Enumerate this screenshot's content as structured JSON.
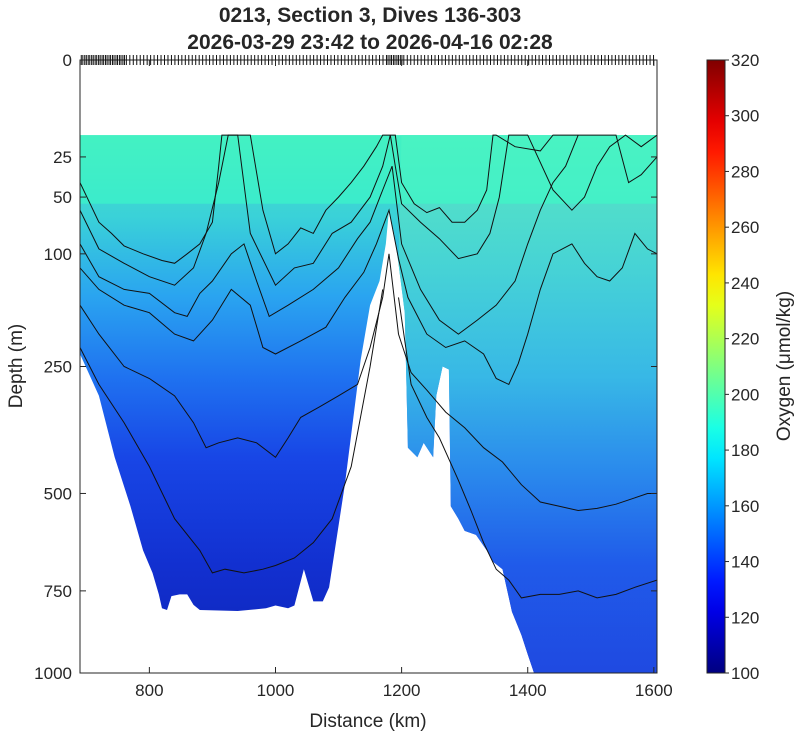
{
  "chart_data": {
    "type": "heatmap",
    "title": [
      "0213, Section 3, Dives 136-303",
      "2026-03-29 23:42 to 2026-04-16 02:28"
    ],
    "xlabel": "Distance (km)",
    "ylabel": "Depth (m)",
    "xlim": [
      690,
      1605
    ],
    "ylim": [
      0,
      1000
    ],
    "y_scale": "sqrt",
    "xticks": [
      800,
      1000,
      1200,
      1400,
      1600
    ],
    "yticks": [
      0,
      25,
      50,
      100,
      250,
      500,
      750,
      1000
    ],
    "colorbar": {
      "label": "Oxygen (μmol/kg)",
      "range": [
        100,
        320
      ],
      "ticks": [
        100,
        120,
        140,
        160,
        180,
        200,
        220,
        240,
        260,
        280,
        300,
        320
      ],
      "colormap": "jet"
    },
    "data_top_depth": 15,
    "surface_value": 195,
    "bottom_boundary": [
      [
        690,
        230
      ],
      [
        720,
        300
      ],
      [
        745,
        420
      ],
      [
        770,
        530
      ],
      [
        790,
        640
      ],
      [
        805,
        700
      ],
      [
        815,
        760
      ],
      [
        820,
        800
      ],
      [
        828,
        805
      ],
      [
        835,
        765
      ],
      [
        848,
        760
      ],
      [
        860,
        760
      ],
      [
        870,
        790
      ],
      [
        880,
        805
      ],
      [
        940,
        808
      ],
      [
        985,
        800
      ],
      [
        1000,
        792
      ],
      [
        1020,
        800
      ],
      [
        1030,
        792
      ],
      [
        1045,
        690
      ],
      [
        1060,
        780
      ],
      [
        1075,
        780
      ],
      [
        1085,
        740
      ],
      [
        1110,
        480
      ],
      [
        1135,
        240
      ],
      [
        1150,
        160
      ],
      [
        1165,
        130
      ],
      [
        1175,
        90
      ],
      [
        1180,
        60
      ],
      [
        1188,
        80
      ],
      [
        1195,
        110
      ],
      [
        1205,
        170
      ],
      [
        1210,
        400
      ],
      [
        1225,
        420
      ],
      [
        1235,
        390
      ],
      [
        1245,
        410
      ],
      [
        1250,
        420
      ],
      [
        1255,
        300
      ],
      [
        1265,
        250
      ],
      [
        1275,
        255
      ],
      [
        1278,
        530
      ],
      [
        1290,
        560
      ],
      [
        1300,
        590
      ],
      [
        1318,
        600
      ],
      [
        1335,
        640
      ],
      [
        1345,
        670
      ],
      [
        1360,
        690
      ],
      [
        1375,
        810
      ],
      [
        1390,
        880
      ],
      [
        1400,
        940
      ],
      [
        1410,
        1000
      ]
    ],
    "series": [
      {
        "name": "",
        "level": 195,
        "points": [
          [
            690,
            40
          ],
          [
            720,
            70
          ],
          [
            740,
            80
          ],
          [
            760,
            92
          ],
          [
            790,
            100
          ],
          [
            820,
            107
          ],
          [
            840,
            110
          ],
          [
            860,
            100
          ],
          [
            880,
            90
          ],
          [
            900,
            70
          ],
          [
            910,
            30
          ],
          [
            915,
            15
          ],
          [
            960,
            15
          ],
          [
            980,
            60
          ],
          [
            1000,
            100
          ],
          [
            1020,
            90
          ],
          [
            1040,
            75
          ],
          [
            1060,
            80
          ],
          [
            1080,
            60
          ],
          [
            1100,
            50
          ],
          [
            1120,
            40
          ],
          [
            1140,
            30
          ],
          [
            1160,
            20
          ],
          [
            1170,
            15
          ],
          [
            1190,
            15
          ],
          [
            1200,
            40
          ],
          [
            1220,
            55
          ],
          [
            1240,
            62
          ],
          [
            1260,
            58
          ],
          [
            1280,
            70
          ],
          [
            1300,
            70
          ],
          [
            1320,
            60
          ],
          [
            1335,
            45
          ],
          [
            1345,
            15
          ],
          [
            1350,
            15
          ],
          [
            1380,
            20
          ],
          [
            1420,
            22
          ],
          [
            1440,
            15
          ],
          [
            1540,
            15
          ],
          [
            1560,
            40
          ],
          [
            1580,
            35
          ],
          [
            1605,
            25
          ]
        ]
      },
      {
        "name": "",
        "level": 180,
        "points": [
          [
            690,
            60
          ],
          [
            720,
            95
          ],
          [
            760,
            110
          ],
          [
            800,
            125
          ],
          [
            840,
            135
          ],
          [
            870,
            115
          ],
          [
            890,
            80
          ],
          [
            910,
            40
          ],
          [
            925,
            15
          ],
          [
            940,
            15
          ],
          [
            960,
            80
          ],
          [
            1000,
            135
          ],
          [
            1030,
            115
          ],
          [
            1060,
            110
          ],
          [
            1090,
            80
          ],
          [
            1120,
            70
          ],
          [
            1150,
            50
          ],
          [
            1170,
            30
          ],
          [
            1182,
            15
          ],
          [
            1190,
            30
          ],
          [
            1200,
            55
          ],
          [
            1230,
            70
          ],
          [
            1260,
            85
          ],
          [
            1290,
            105
          ],
          [
            1320,
            100
          ],
          [
            1340,
            80
          ],
          [
            1355,
            50
          ],
          [
            1370,
            15
          ],
          [
            1400,
            15
          ],
          [
            1440,
            45
          ],
          [
            1470,
            60
          ],
          [
            1490,
            50
          ],
          [
            1510,
            30
          ],
          [
            1530,
            20
          ],
          [
            1555,
            15
          ],
          [
            1580,
            20
          ],
          [
            1605,
            15
          ]
        ]
      },
      {
        "name": "",
        "level": 170,
        "points": [
          [
            690,
            90
          ],
          [
            720,
            125
          ],
          [
            760,
            140
          ],
          [
            800,
            145
          ],
          [
            840,
            170
          ],
          [
            860,
            175
          ],
          [
            880,
            145
          ],
          [
            900,
            130
          ],
          [
            930,
            100
          ],
          [
            950,
            90
          ],
          [
            970,
            130
          ],
          [
            990,
            175
          ],
          [
            1020,
            160
          ],
          [
            1060,
            140
          ],
          [
            1100,
            115
          ],
          [
            1130,
            85
          ],
          [
            1150,
            70
          ],
          [
            1170,
            45
          ],
          [
            1185,
            30
          ],
          [
            1200,
            90
          ],
          [
            1230,
            140
          ],
          [
            1260,
            180
          ],
          [
            1290,
            200
          ],
          [
            1320,
            180
          ],
          [
            1350,
            160
          ],
          [
            1380,
            130
          ],
          [
            1400,
            90
          ],
          [
            1420,
            60
          ],
          [
            1440,
            40
          ],
          [
            1460,
            30
          ],
          [
            1480,
            15
          ]
        ]
      },
      {
        "name": "",
        "level": 160,
        "points": [
          [
            690,
            115
          ],
          [
            720,
            140
          ],
          [
            760,
            160
          ],
          [
            800,
            170
          ],
          [
            840,
            200
          ],
          [
            870,
            210
          ],
          [
            900,
            180
          ],
          [
            930,
            140
          ],
          [
            960,
            160
          ],
          [
            980,
            220
          ],
          [
            1000,
            230
          ],
          [
            1040,
            210
          ],
          [
            1080,
            190
          ],
          [
            1110,
            150
          ],
          [
            1140,
            120
          ],
          [
            1160,
            90
          ],
          [
            1180,
            60
          ],
          [
            1195,
            105
          ],
          [
            1210,
            150
          ],
          [
            1240,
            200
          ],
          [
            1270,
            220
          ],
          [
            1300,
            210
          ],
          [
            1330,
            230
          ],
          [
            1350,
            270
          ],
          [
            1370,
            280
          ],
          [
            1385,
            245
          ],
          [
            1400,
            200
          ],
          [
            1420,
            140
          ],
          [
            1440,
            100
          ],
          [
            1470,
            90
          ],
          [
            1490,
            110
          ],
          [
            1510,
            125
          ],
          [
            1530,
            130
          ],
          [
            1550,
            115
          ],
          [
            1570,
            80
          ],
          [
            1590,
            95
          ],
          [
            1605,
            100
          ]
        ]
      },
      {
        "name": "",
        "level": 150,
        "points": [
          [
            690,
            160
          ],
          [
            720,
            200
          ],
          [
            760,
            250
          ],
          [
            800,
            270
          ],
          [
            840,
            300
          ],
          [
            870,
            350
          ],
          [
            890,
            400
          ],
          [
            910,
            390
          ],
          [
            940,
            380
          ],
          [
            970,
            390
          ],
          [
            1000,
            420
          ],
          [
            1020,
            380
          ],
          [
            1040,
            340
          ],
          [
            1070,
            320
          ],
          [
            1100,
            300
          ],
          [
            1130,
            280
          ],
          [
            1150,
            220
          ],
          [
            1170,
            150
          ],
          [
            1180,
            100
          ],
          [
            1195,
            200
          ],
          [
            1215,
            260
          ],
          [
            1240,
            290
          ],
          [
            1270,
            330
          ],
          [
            1300,
            360
          ],
          [
            1330,
            400
          ],
          [
            1360,
            430
          ],
          [
            1390,
            480
          ],
          [
            1420,
            520
          ],
          [
            1450,
            530
          ],
          [
            1480,
            540
          ],
          [
            1510,
            535
          ],
          [
            1540,
            525
          ],
          [
            1570,
            510
          ],
          [
            1590,
            500
          ],
          [
            1605,
            500
          ]
        ]
      },
      {
        "name": "",
        "level": 130,
        "points": [
          [
            690,
            220
          ],
          [
            720,
            280
          ],
          [
            760,
            350
          ],
          [
            800,
            440
          ],
          [
            840,
            560
          ],
          [
            880,
            640
          ],
          [
            900,
            700
          ],
          [
            920,
            690
          ],
          [
            950,
            700
          ],
          [
            980,
            690
          ],
          [
            1000,
            680
          ],
          [
            1030,
            660
          ],
          [
            1060,
            620
          ],
          [
            1090,
            560
          ],
          [
            1120,
            440
          ],
          [
            1150,
            250
          ],
          [
            1170,
            140
          ]
        ]
      },
      {
        "name": "",
        "level": 130,
        "points": [
          [
            1195,
            150
          ],
          [
            1215,
            280
          ],
          [
            1240,
            340
          ],
          [
            1260,
            380
          ],
          [
            1290,
            470
          ],
          [
            1310,
            540
          ],
          [
            1330,
            620
          ],
          [
            1350,
            690
          ],
          [
            1370,
            720
          ],
          [
            1390,
            770
          ],
          [
            1420,
            760
          ],
          [
            1450,
            760
          ],
          [
            1480,
            750
          ],
          [
            1510,
            770
          ],
          [
            1540,
            760
          ],
          [
            1570,
            740
          ],
          [
            1605,
            720
          ]
        ]
      }
    ]
  }
}
